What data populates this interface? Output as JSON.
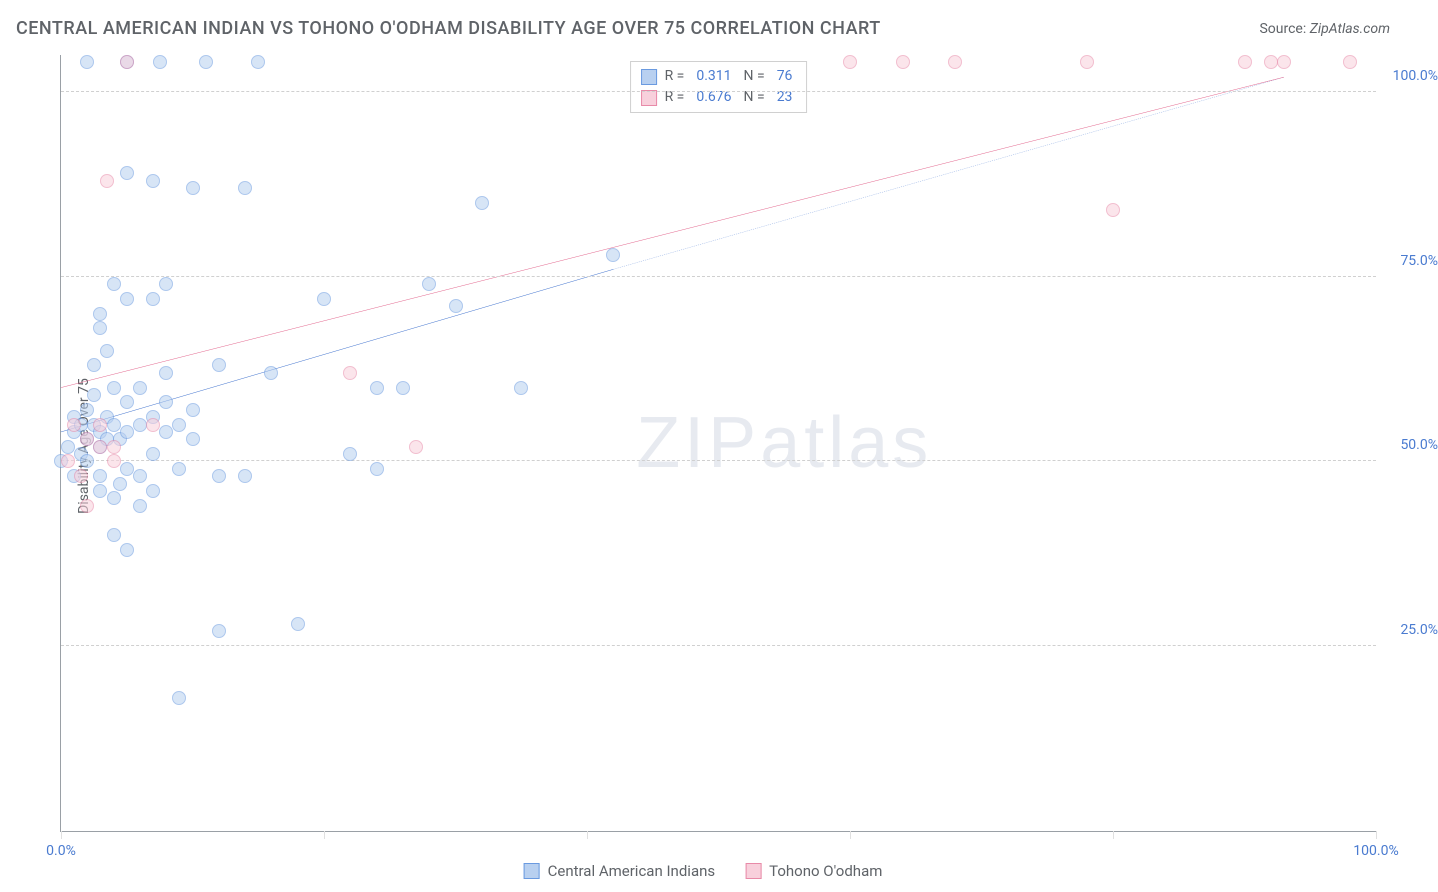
{
  "title": "CENTRAL AMERICAN INDIAN VS TOHONO O'ODHAM DISABILITY AGE OVER 75 CORRELATION CHART",
  "source_label": "Source:",
  "source_value": "ZipAtlas.com",
  "ylabel": "Disability Age Over 75",
  "watermark": {
    "zip": "ZIP",
    "atlas": "atlas"
  },
  "chart": {
    "type": "scatter",
    "xlim": [
      0,
      100
    ],
    "ylim": [
      0,
      105
    ],
    "yticks": [
      25,
      50,
      75,
      100
    ],
    "ytick_labels": [
      "25.0%",
      "50.0%",
      "75.0%",
      "100.0%"
    ],
    "xticks_minor": [
      0,
      20,
      40,
      60,
      80,
      100
    ],
    "xtick_labels": [
      "0.0%",
      "100.0%"
    ],
    "xtick_positions": [
      0,
      100
    ],
    "background_color": "#ffffff",
    "grid_color": "#d0d0d0",
    "axis_color": "#9aa0a6",
    "tick_label_color": "#4a7bd0",
    "marker_radius": 7,
    "marker_opacity": 0.55
  },
  "series": [
    {
      "name": "Central American Indians",
      "fill": "#b8d0f0",
      "stroke": "#6a9ae0",
      "reg_color": "#2a62c8",
      "reg_solid": {
        "x0": 0,
        "y0": 54,
        "x1": 42,
        "y1": 76
      },
      "reg_dash": {
        "x0": 42,
        "y0": 76,
        "x1": 93,
        "y1": 102
      },
      "stats": {
        "R": "0.311",
        "N": "76"
      },
      "points": [
        [
          0,
          50
        ],
        [
          0.5,
          52
        ],
        [
          1,
          54
        ],
        [
          1,
          56
        ],
        [
          1,
          48
        ],
        [
          1.5,
          51
        ],
        [
          1.5,
          55
        ],
        [
          2,
          53
        ],
        [
          2,
          50
        ],
        [
          2,
          57
        ],
        [
          2,
          104
        ],
        [
          2.5,
          59
        ],
        [
          2.5,
          55
        ],
        [
          2.5,
          63
        ],
        [
          3,
          52
        ],
        [
          3,
          54
        ],
        [
          3,
          48
        ],
        [
          3,
          68
        ],
        [
          3,
          70
        ],
        [
          3,
          46
        ],
        [
          3.5,
          53
        ],
        [
          3.5,
          56
        ],
        [
          3.5,
          65
        ],
        [
          4,
          55
        ],
        [
          4,
          60
        ],
        [
          4,
          45
        ],
        [
          4,
          74
        ],
        [
          4,
          40
        ],
        [
          4.5,
          53
        ],
        [
          4.5,
          47
        ],
        [
          5,
          54
        ],
        [
          5,
          58
        ],
        [
          5,
          49
        ],
        [
          5,
          89
        ],
        [
          5,
          72
        ],
        [
          5,
          38
        ],
        [
          5,
          104
        ],
        [
          6,
          55
        ],
        [
          6,
          48
        ],
        [
          6,
          60
        ],
        [
          6,
          44
        ],
        [
          7,
          51
        ],
        [
          7,
          56
        ],
        [
          7,
          88
        ],
        [
          7,
          46
        ],
        [
          7,
          72
        ],
        [
          7.5,
          104
        ],
        [
          8,
          54
        ],
        [
          8,
          58
        ],
        [
          8,
          74
        ],
        [
          8,
          62
        ],
        [
          9,
          49
        ],
        [
          9,
          55
        ],
        [
          9,
          18
        ],
        [
          10,
          57
        ],
        [
          10,
          87
        ],
        [
          10,
          53
        ],
        [
          11,
          104
        ],
        [
          12,
          48
        ],
        [
          12,
          63
        ],
        [
          12,
          27
        ],
        [
          14,
          48
        ],
        [
          14,
          87
        ],
        [
          15,
          104
        ],
        [
          16,
          62
        ],
        [
          18,
          28
        ],
        [
          20,
          72
        ],
        [
          22,
          51
        ],
        [
          24,
          49
        ],
        [
          24,
          60
        ],
        [
          26,
          60
        ],
        [
          28,
          74
        ],
        [
          30,
          71
        ],
        [
          32,
          85
        ],
        [
          35,
          60
        ],
        [
          42,
          78
        ]
      ]
    },
    {
      "name": "Tohono O'odham",
      "fill": "#f8d0dc",
      "stroke": "#e88aa8",
      "reg_color": "#e05580",
      "reg_solid": {
        "x0": 0,
        "y0": 60,
        "x1": 93,
        "y1": 102
      },
      "reg_dash": null,
      "stats": {
        "R": "0.676",
        "N": "23"
      },
      "points": [
        [
          0.5,
          50
        ],
        [
          1,
          55
        ],
        [
          1.5,
          48
        ],
        [
          2,
          53
        ],
        [
          2,
          44
        ],
        [
          3,
          52
        ],
        [
          3,
          55
        ],
        [
          3.5,
          88
        ],
        [
          4,
          50
        ],
        [
          4,
          52
        ],
        [
          5,
          104
        ],
        [
          7,
          55
        ],
        [
          22,
          62
        ],
        [
          27,
          52
        ],
        [
          60,
          104
        ],
        [
          64,
          104
        ],
        [
          68,
          104
        ],
        [
          78,
          104
        ],
        [
          80,
          84
        ],
        [
          90,
          104
        ],
        [
          92,
          104
        ],
        [
          93,
          104
        ],
        [
          98,
          104
        ]
      ]
    }
  ],
  "legend_top": {
    "R_label": "R =",
    "N_label": "N ="
  },
  "legend_bottom": {
    "items": [
      "Central American Indians",
      "Tohono O'odham"
    ]
  }
}
